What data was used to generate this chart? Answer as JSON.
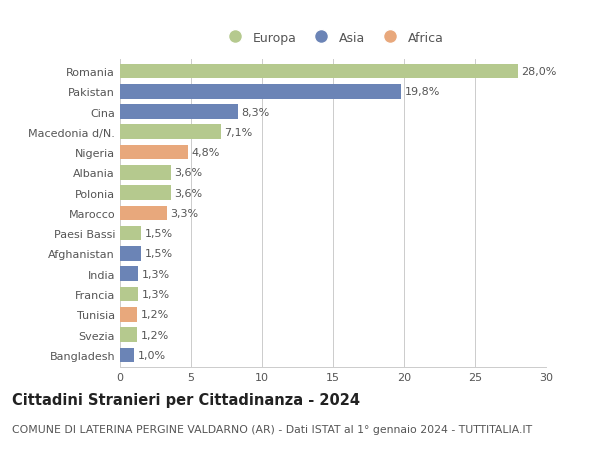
{
  "categories": [
    "Romania",
    "Pakistan",
    "Cina",
    "Macedonia d/N.",
    "Nigeria",
    "Albania",
    "Polonia",
    "Marocco",
    "Paesi Bassi",
    "Afghanistan",
    "India",
    "Francia",
    "Tunisia",
    "Svezia",
    "Bangladesh"
  ],
  "values": [
    28.0,
    19.8,
    8.3,
    7.1,
    4.8,
    3.6,
    3.6,
    3.3,
    1.5,
    1.5,
    1.3,
    1.3,
    1.2,
    1.2,
    1.0
  ],
  "labels": [
    "28,0%",
    "19,8%",
    "8,3%",
    "7,1%",
    "4,8%",
    "3,6%",
    "3,6%",
    "3,3%",
    "1,5%",
    "1,5%",
    "1,3%",
    "1,3%",
    "1,2%",
    "1,2%",
    "1,0%"
  ],
  "continents": [
    "Europa",
    "Asia",
    "Asia",
    "Europa",
    "Africa",
    "Europa",
    "Europa",
    "Africa",
    "Europa",
    "Asia",
    "Asia",
    "Europa",
    "Africa",
    "Europa",
    "Asia"
  ],
  "colors": {
    "Europa": "#b5c98e",
    "Asia": "#6b84b6",
    "Africa": "#e8a87c"
  },
  "xlim": [
    0,
    30
  ],
  "xticks": [
    0,
    5,
    10,
    15,
    20,
    25,
    30
  ],
  "title": "Cittadini Stranieri per Cittadinanza - 2024",
  "subtitle": "COMUNE DI LATERINA PERGINE VALDARNO (AR) - Dati ISTAT al 1° gennaio 2024 - TUTTITALIA.IT",
  "background_color": "#ffffff",
  "grid_color": "#cccccc",
  "bar_height": 0.72,
  "title_fontsize": 10.5,
  "subtitle_fontsize": 7.8,
  "label_fontsize": 8,
  "tick_fontsize": 8,
  "legend_fontsize": 9
}
